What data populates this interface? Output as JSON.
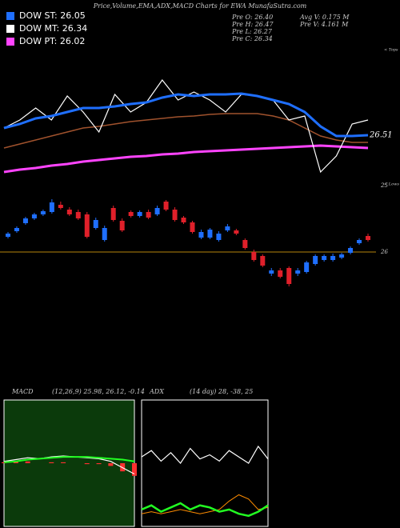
{
  "header": {
    "title": "Price,Volume,EMA,ADX,MACD Charts for EWA MunafaSutra.com"
  },
  "legend": [
    {
      "label": "DOW ST: 26.05",
      "color": "#1f6fff"
    },
    {
      "label": "DOW MT: 26.34",
      "color": "#ffffff"
    },
    {
      "label": "DOW PT: 26.02",
      "color": "#ff44ff"
    }
  ],
  "info": [
    "Pre O: 26.40",
    "Pre H: 26.47",
    "Pre L: 26.27",
    "Pre C: 26.34",
    "Avg V: 0.175 M",
    "Pre V: 4.161 M"
  ],
  "chart_data": [
    {
      "type": "line",
      "ylim": [
        25.9,
        27.5
      ],
      "end_label": 26.51,
      "annotations": [
        "< Tops",
        "< Lows"
      ],
      "series": [
        {
          "color": "#ff44ff",
          "width": 3,
          "values": [
            26.05,
            26.08,
            26.1,
            26.13,
            26.15,
            26.18,
            26.2,
            26.22,
            26.24,
            26.25,
            26.27,
            26.28,
            26.3,
            26.31,
            26.32,
            26.33,
            26.34,
            26.35,
            26.36,
            26.37,
            26.38,
            26.37,
            26.36,
            26.35
          ]
        },
        {
          "color": "#a0522d",
          "width": 1.5,
          "values": [
            26.35,
            26.4,
            26.45,
            26.5,
            26.55,
            26.6,
            26.62,
            26.65,
            26.68,
            26.7,
            26.72,
            26.74,
            26.75,
            26.77,
            26.78,
            26.78,
            26.78,
            26.75,
            26.7,
            26.6,
            26.5,
            26.45,
            26.42,
            26.42
          ]
        },
        {
          "color": "#ffffff",
          "width": 1.2,
          "values": [
            26.6,
            26.7,
            26.85,
            26.7,
            27.0,
            26.8,
            26.55,
            27.02,
            26.8,
            26.92,
            27.2,
            26.95,
            27.05,
            26.95,
            26.8,
            27.02,
            27.0,
            26.95,
            26.7,
            26.75,
            26.05,
            26.25,
            26.65,
            26.7
          ]
        },
        {
          "color": "#1f6fff",
          "width": 3,
          "values": [
            26.6,
            26.65,
            26.72,
            26.75,
            26.8,
            26.85,
            26.85,
            26.87,
            26.9,
            26.92,
            26.98,
            27.02,
            27.0,
            27.02,
            27.02,
            27.03,
            27.0,
            26.95,
            26.9,
            26.8,
            26.62,
            26.5,
            26.5,
            26.51
          ]
        }
      ]
    },
    {
      "type": "candlestick",
      "ylim": [
        25.45,
        26.75
      ],
      "yticks": [
        26
      ],
      "tick_color": "#b8860b",
      "annotation": "25",
      "up_color": "#1f6fff",
      "down_color": "#e0202a",
      "open": [
        26.19,
        26.26,
        26.36,
        26.42,
        26.47,
        26.5,
        26.59,
        26.53,
        26.5,
        26.47,
        26.3,
        26.15,
        26.55,
        26.39,
        26.5,
        26.45,
        26.5,
        26.47,
        26.63,
        26.53,
        26.43,
        26.37,
        26.18,
        26.18,
        26.15,
        26.27,
        26.27,
        26.15,
        26.0,
        25.95,
        25.73,
        25.77,
        25.8,
        25.73,
        25.75,
        25.85,
        25.9,
        25.9,
        25.93,
        25.99,
        26.11,
        26.2
      ],
      "high": [
        26.25,
        26.32,
        26.44,
        26.49,
        26.53,
        26.66,
        26.63,
        26.56,
        26.53,
        26.5,
        26.43,
        26.33,
        26.58,
        26.42,
        26.52,
        26.52,
        26.53,
        26.58,
        26.65,
        26.56,
        26.45,
        26.39,
        26.28,
        26.3,
        26.26,
        26.35,
        26.29,
        26.17,
        26.03,
        25.97,
        25.8,
        25.8,
        25.82,
        25.8,
        25.89,
        25.97,
        25.97,
        25.98,
        25.99,
        26.07,
        26.17,
        26.23
      ],
      "low": [
        26.17,
        26.24,
        26.34,
        26.4,
        26.45,
        26.48,
        26.53,
        26.45,
        26.4,
        26.17,
        26.28,
        26.13,
        26.38,
        26.25,
        26.43,
        26.43,
        26.41,
        26.45,
        26.51,
        26.38,
        26.35,
        26.23,
        26.16,
        26.16,
        26.13,
        26.25,
        26.21,
        26.03,
        25.88,
        25.81,
        25.7,
        25.67,
        25.57,
        25.7,
        25.73,
        25.83,
        25.88,
        25.88,
        25.91,
        25.97,
        26.09,
        26.13
      ],
      "close": [
        26.23,
        26.3,
        26.42,
        26.47,
        26.51,
        26.62,
        26.55,
        26.47,
        26.42,
        26.19,
        26.4,
        26.3,
        26.4,
        26.27,
        26.45,
        26.5,
        26.43,
        26.55,
        26.53,
        26.4,
        26.37,
        26.25,
        26.25,
        26.28,
        26.23,
        26.32,
        26.23,
        26.05,
        25.9,
        25.83,
        25.77,
        25.69,
        25.6,
        25.77,
        25.87,
        25.95,
        25.95,
        25.95,
        25.97,
        26.05,
        26.15,
        26.15
      ]
    },
    {
      "type": "macd",
      "label": "MACD",
      "params": "(12,26,9) 25.98, 26.12, -0.14",
      "background": "#0b3a0b",
      "ylim": [
        25.4,
        26.8
      ],
      "y2lim": [
        -0.7,
        0.7
      ],
      "histogram_color": "#ff3030",
      "series": [
        {
          "color": "#ffffff",
          "width": 1.2,
          "values": [
            26.12,
            26.14,
            26.16,
            26.15,
            26.17,
            26.18,
            26.17,
            26.16,
            26.15,
            26.12,
            26.05,
            25.98
          ]
        },
        {
          "color": "#22ff22",
          "width": 2,
          "values": [
            26.11,
            26.12,
            26.14,
            26.15,
            26.16,
            26.17,
            26.17,
            26.17,
            26.16,
            26.15,
            26.14,
            26.12
          ]
        }
      ],
      "histogram": [
        0.01,
        0.02,
        0.02,
        0,
        0.01,
        0.01,
        0,
        -0.01,
        -0.01,
        -0.03,
        -0.09,
        -0.14
      ]
    },
    {
      "type": "line",
      "label": "ADX",
      "params": "(14 day) 28, -38, 25",
      "ylim": [
        0,
        60
      ],
      "series": [
        {
          "color": "#ffffff",
          "width": 1.2,
          "values": [
            33,
            36,
            31,
            35,
            30,
            37,
            32,
            34,
            31,
            36,
            33,
            30,
            38,
            32
          ]
        },
        {
          "color": "#ff8c00",
          "width": 1,
          "values": [
            6,
            7,
            6,
            7,
            8,
            7,
            6,
            7,
            8,
            12,
            15,
            13,
            8,
            9
          ]
        },
        {
          "color": "#22ff22",
          "width": 2.5,
          "values": [
            8,
            10,
            7,
            9,
            11,
            8,
            10,
            9,
            7,
            8,
            6,
            5,
            7,
            10
          ]
        }
      ]
    }
  ]
}
